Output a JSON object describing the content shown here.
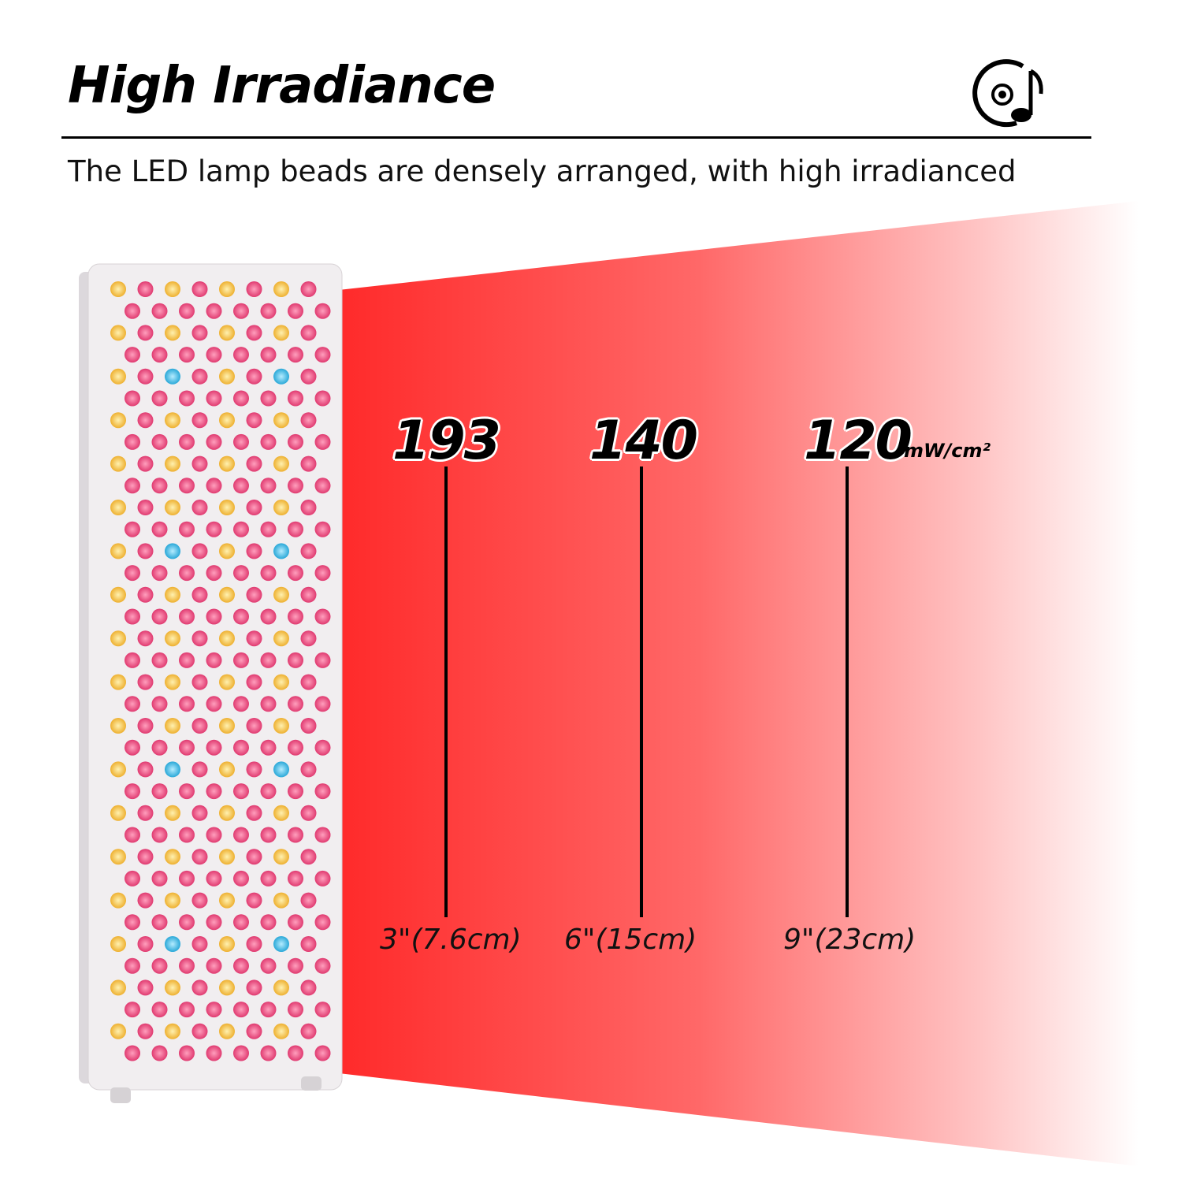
{
  "header": {
    "title": "High Irradiance",
    "subtitle": "The LED lamp beads are densely arranged, with high irradianced",
    "icon": "music-disc-icon"
  },
  "colors": {
    "beam": "#ff2a2a",
    "led_red": "#e8457a",
    "led_amber": "#f4c04a",
    "led_blue": "#3fb6e0",
    "panel": "#f1eef0"
  },
  "measurements": {
    "unit": "mW/cm²",
    "items": [
      {
        "value": "193",
        "distance": "3\"(7.6cm)"
      },
      {
        "value": "140",
        "distance": "6\"(15cm)"
      },
      {
        "value": "120",
        "distance": "9\"(23cm)"
      }
    ]
  }
}
